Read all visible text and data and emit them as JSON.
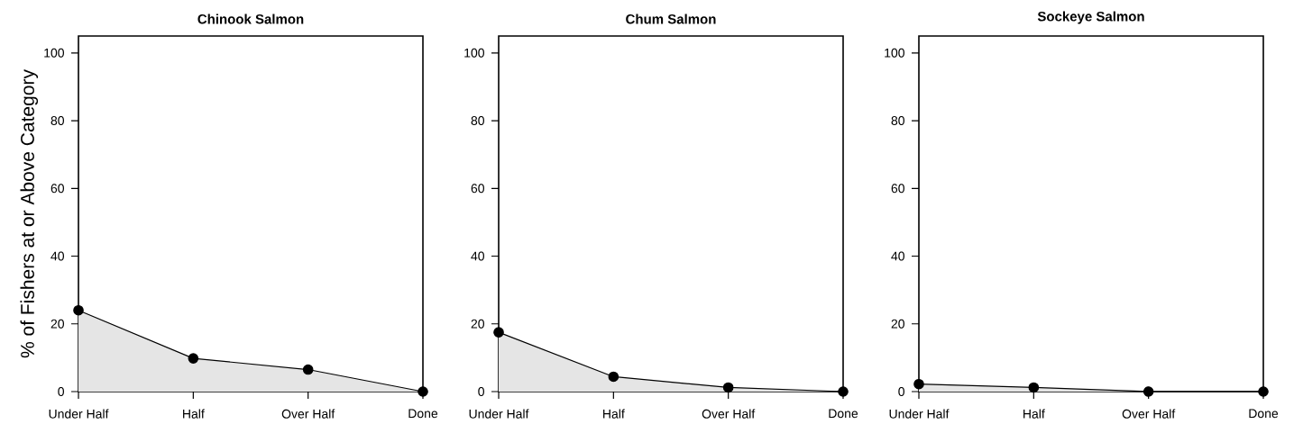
{
  "chart_data": [
    {
      "type": "area",
      "title": "Chinook Salmon",
      "ylabel": "% of Fishers at or Above Category",
      "categories": [
        "Under Half",
        "Half",
        "Over Half",
        "Done"
      ],
      "values": [
        24.0,
        9.8,
        6.5,
        0
      ],
      "color": "#e5e5e5",
      "marker": "circle",
      "ylim": [
        0,
        105
      ],
      "yticks": [
        0,
        20,
        40,
        60,
        80,
        100
      ]
    },
    {
      "type": "area",
      "title": "Chum Salmon",
      "categories": [
        "Under Half",
        "Half",
        "Over Half",
        "Done"
      ],
      "values": [
        17.5,
        4.4,
        1.2,
        0
      ],
      "color": "#e5e5e5",
      "marker": "circle",
      "ylim": [
        0,
        105
      ],
      "yticks": [
        0,
        20,
        40,
        60,
        80,
        100
      ]
    },
    {
      "type": "area",
      "title": "Sockeye Salmon",
      "categories": [
        "Under Half",
        "Half",
        "Over Half",
        "Done"
      ],
      "values": [
        2.2,
        1.2,
        0,
        0
      ],
      "color": "#e5e5e5",
      "marker": "circle",
      "ylim": [
        0,
        105
      ],
      "yticks": [
        0,
        20,
        40,
        60,
        80,
        100
      ]
    }
  ]
}
